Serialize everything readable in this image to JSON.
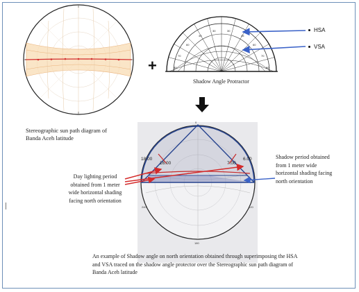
{
  "diagram": {
    "operator_plus": "+",
    "protractor_caption": "Shadow Angle Protractor",
    "hsa_label": "HSA",
    "vsa_label": "VSA",
    "sunpath_caption": "Stereographic sun path diagram of Banda Aceh latitude",
    "daylight_note": "Day lighting period obtained from 1 meter wide horizontal shading facing north orientation",
    "shadow_note": "Shadow period obtained from 1 meter wide horizontal shading facing north orientation",
    "time_labels": [
      "18.00",
      "16.00",
      "7.00",
      "6.00"
    ],
    "bottom_caption": "An example of Shadow angle on north orientation obtained through superimposing the HSA and VSA traced on the shadow angle protector over the Stereographic sun path diagram of Banda Aceh latitude"
  },
  "colors": {
    "frame": "#6d8fb8",
    "arrow_blue": "#3a62c8",
    "arrow_red": "#d42a2a",
    "sun_band": "#f3c78e",
    "path_red": "#d43030",
    "overlay_blue": "#27448f"
  }
}
